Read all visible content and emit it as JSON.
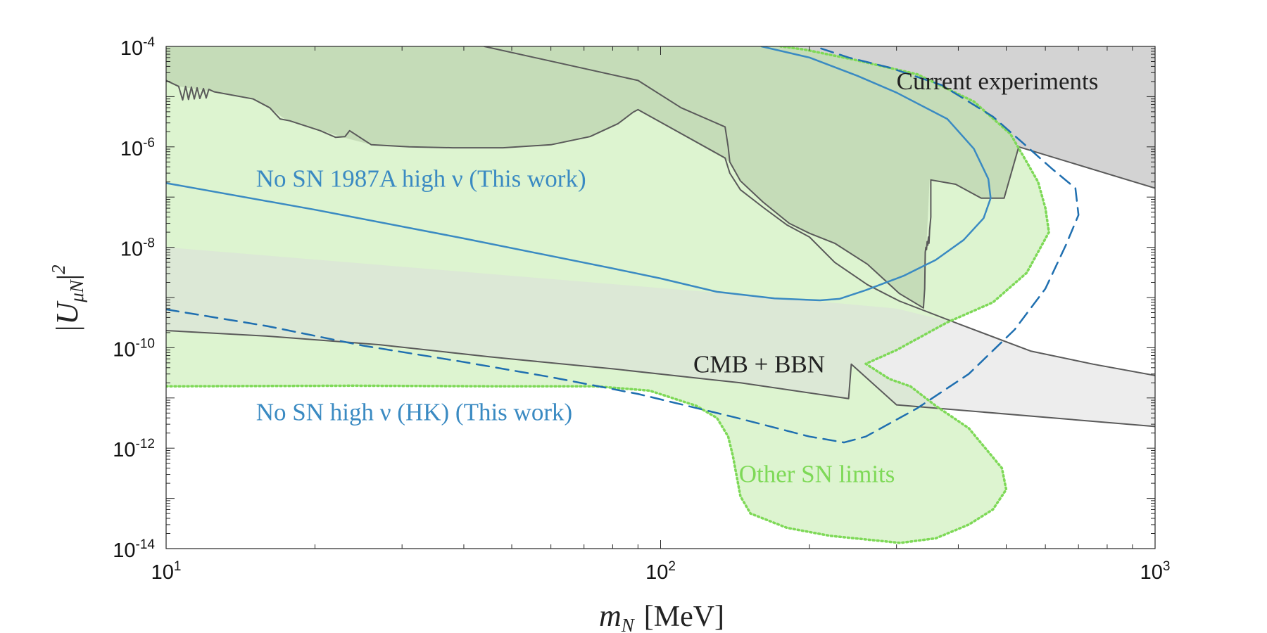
{
  "chart_data": {
    "type": "area",
    "xscale": "log",
    "yscale": "log",
    "xlim": [
      10,
      1000
    ],
    "ylim": [
      1e-14,
      0.0001
    ],
    "x_ticks": [
      {
        "base": "10",
        "exp": "1"
      },
      {
        "base": "10",
        "exp": "2"
      },
      {
        "base": "10",
        "exp": "3"
      }
    ],
    "y_ticks": [
      {
        "base": "10",
        "exp": "-4"
      },
      {
        "base": "10",
        "exp": "-6"
      },
      {
        "base": "10",
        "exp": "-8"
      },
      {
        "base": "10",
        "exp": "-10"
      },
      {
        "base": "10",
        "exp": "-12"
      },
      {
        "base": "10",
        "exp": "-14"
      }
    ],
    "xlabel": {
      "symbol": "m",
      "subscript": "N",
      "unit": "[MeV]"
    },
    "ylabel": {
      "symbol": "|U",
      "subscript": "μN",
      "suffix": "|",
      "power": "2"
    },
    "colors": {
      "current": "#9e9e9e",
      "cmb": "#dcdcdc",
      "sn_fill": "#b4e696",
      "sn_line": "#7ed957",
      "blue": "#3a8ac2",
      "blue_dark": "#1f6fb0",
      "outline": "#5a5a5a"
    },
    "annotations": [
      {
        "text": "Current experiments",
        "x": 300,
        "y": 1.4e-05,
        "anchor": "start",
        "color": "#222222"
      },
      {
        "text": "No SN 1987A high ν (This work)",
        "x": 15.2,
        "y": 1.6e-07,
        "anchor": "start",
        "color": "#3a8ac2"
      },
      {
        "text": "CMB + BBN",
        "x": 215,
        "y": 3.2e-11,
        "anchor": "end",
        "color": "#222222"
      },
      {
        "text": "No SN high ν (HK) (This work)",
        "x": 15.2,
        "y": 3.6e-12,
        "anchor": "start",
        "color": "#3a8ac2"
      },
      {
        "text": "Other SN limits",
        "x": 144,
        "y": 2.1e-13,
        "anchor": "start",
        "color": "#7ed957"
      }
    ],
    "series": [
      {
        "name": "Current experiments",
        "kind": "fill",
        "fill": "#9e9e9e",
        "opacity": 0.45,
        "points": [
          [
            10,
            2.1e-05
          ],
          [
            10.6,
            1.6e-05
          ],
          [
            12.5,
            1.25e-05
          ],
          [
            15,
            9e-06
          ],
          [
            16.2,
            6e-06
          ],
          [
            17.5,
            3.4e-06
          ],
          [
            21,
            2e-06
          ],
          [
            22.5,
            1.6e-06
          ],
          [
            26,
            1.1e-06
          ],
          [
            31,
            1e-06
          ],
          [
            38,
            9.6e-07
          ],
          [
            48,
            9.6e-07
          ],
          [
            60,
            1.1e-06
          ],
          [
            72,
            1.6e-06
          ],
          [
            82,
            2.9e-06
          ],
          [
            90,
            5.5e-06
          ],
          [
            138,
            5e-07
          ],
          [
            145,
            2.1e-07
          ],
          [
            161,
            8e-08
          ],
          [
            182,
            3e-08
          ],
          [
            200,
            1.9e-08
          ],
          [
            225,
            1.2e-08
          ],
          [
            262,
            4.6e-09
          ],
          [
            304,
            1.2e-09
          ],
          [
            340,
            6.2e-10
          ],
          [
            345,
            1.2e-08
          ],
          [
            350,
            2.2e-07
          ],
          [
            395,
            1.8e-07
          ],
          [
            445,
            9.5e-08
          ],
          [
            495,
            9.5e-08
          ],
          [
            530,
            1e-06
          ],
          [
            1000,
            1.5e-07
          ],
          [
            1000,
            0.0001
          ],
          [
            10,
            0.0001
          ]
        ]
      },
      {
        "name": "Other SN limits",
        "kind": "fill",
        "fill": "#b4e696",
        "opacity": 0.45,
        "points": [
          [
            10,
            1.7e-11
          ],
          [
            24,
            1.75e-11
          ],
          [
            48,
            1.7e-11
          ],
          [
            74,
            1.7e-11
          ],
          [
            95,
            1.4e-11
          ],
          [
            118,
            7e-12
          ],
          [
            130,
            4e-12
          ],
          [
            137,
            1.7e-12
          ],
          [
            140,
            7e-13
          ],
          [
            145,
            1.1e-13
          ],
          [
            152,
            5e-14
          ],
          [
            180,
            2.6e-14
          ],
          [
            220,
            1.8e-14
          ],
          [
            305,
            1.3e-14
          ],
          [
            360,
            1.6e-14
          ],
          [
            420,
            3e-14
          ],
          [
            470,
            6e-14
          ],
          [
            500,
            1.5e-13
          ],
          [
            490,
            4e-13
          ],
          [
            420,
            2.5e-12
          ],
          [
            360,
            7e-12
          ],
          [
            320,
            1.7e-11
          ],
          [
            290,
            2.4e-11
          ],
          [
            260,
            4.8e-11
          ],
          [
            300,
            9e-11
          ],
          [
            380,
            3.2e-10
          ],
          [
            470,
            8e-10
          ],
          [
            550,
            3.1e-09
          ],
          [
            610,
            2e-08
          ],
          [
            600,
            6e-08
          ],
          [
            580,
            2e-07
          ],
          [
            550,
            5e-07
          ],
          [
            510,
            1.8e-06
          ],
          [
            430,
            8e-06
          ],
          [
            330,
            2.8e-05
          ],
          [
            245,
            5.5e-05
          ],
          [
            195,
            8.7e-05
          ],
          [
            175,
            0.0001
          ],
          [
            10,
            0.0001
          ]
        ]
      },
      {
        "name": "CMB + BBN",
        "kind": "fill",
        "fill": "#dcdcdc",
        "opacity": 0.5,
        "points": [
          [
            10,
            2.2e-10
          ],
          [
            16,
            1.7e-10
          ],
          [
            27,
            1.15e-10
          ],
          [
            45,
            6.6e-11
          ],
          [
            80,
            3.8e-11
          ],
          [
            145,
            2e-11
          ],
          [
            240,
            9.7e-12
          ],
          [
            243,
            4.7e-11
          ],
          [
            300,
            7.3e-12
          ],
          [
            1000,
            2.7e-12
          ],
          [
            1000,
            2.8e-11
          ],
          [
            750,
            4.7e-11
          ],
          [
            560,
            8.6e-11
          ],
          [
            400,
            3e-10
          ],
          [
            300,
            6e-10
          ],
          [
            170,
            1e-09
          ],
          [
            10,
            1e-08
          ]
        ]
      },
      {
        "name": "outline-current-left",
        "kind": "line",
        "color": "#5a5a5a",
        "width": 2,
        "points": [
          [
            10,
            2.1e-05
          ],
          [
            10.6,
            1.6e-05
          ],
          [
            10.8,
            8.6e-06
          ],
          [
            10.95,
            1.6e-05
          ],
          [
            11.1,
            8.8e-06
          ],
          [
            11.25,
            1.55e-05
          ],
          [
            11.4,
            9e-06
          ],
          [
            11.55,
            1.5e-05
          ],
          [
            11.7,
            9.2e-06
          ],
          [
            11.9,
            1.45e-05
          ],
          [
            12.05,
            9.4e-06
          ],
          [
            12.2,
            1.4e-05
          ],
          [
            12.5,
            1.25e-05
          ],
          [
            15,
            9e-06
          ],
          [
            16.2,
            6e-06
          ],
          [
            17,
            3.6e-06
          ],
          [
            17.8,
            3.3e-06
          ],
          [
            20.5,
            2.1e-06
          ],
          [
            22,
            1.55e-06
          ],
          [
            23,
            1.6e-06
          ],
          [
            23.5,
            2.1e-06
          ],
          [
            26,
            1.1e-06
          ],
          [
            31,
            1e-06
          ],
          [
            38,
            9.6e-07
          ],
          [
            48,
            9.6e-07
          ],
          [
            60,
            1.1e-06
          ],
          [
            72,
            1.6e-06
          ],
          [
            82,
            2.9e-06
          ],
          [
            88,
            4.9e-06
          ],
          [
            90,
            5.5e-06
          ]
        ]
      },
      {
        "name": "outline-current-mid",
        "kind": "line",
        "color": "#5a5a5a",
        "width": 2,
        "points": [
          [
            44,
            0.0001
          ],
          [
            90,
            2.1e-05
          ],
          [
            110,
            6e-06
          ],
          [
            135,
            2.5e-06
          ],
          [
            137,
            1e-06
          ],
          [
            138,
            5e-07
          ],
          [
            145,
            2.1e-07
          ],
          [
            161,
            8e-08
          ],
          [
            182,
            3e-08
          ],
          [
            200,
            1.9e-08
          ],
          [
            225,
            1.2e-08
          ],
          [
            262,
            4.6e-09
          ],
          [
            304,
            1.2e-09
          ],
          [
            340,
            6.2e-10
          ],
          [
            342,
            1.5e-09
          ],
          [
            343,
            8e-09
          ],
          [
            344,
            1e-08
          ],
          [
            345,
            9e-09
          ],
          [
            346,
            1.3e-08
          ],
          [
            347,
            1.1e-08
          ],
          [
            348,
            1.6e-08
          ],
          [
            349,
            1.2e-08
          ],
          [
            350,
            2.2e-08
          ],
          [
            352,
            4e-08
          ],
          [
            352,
            2.2e-07
          ],
          [
            395,
            1.8e-07
          ],
          [
            445,
            9.5e-08
          ],
          [
            495,
            9.5e-08
          ],
          [
            530,
            1e-06
          ]
        ]
      },
      {
        "name": "outline-current-right",
        "kind": "line",
        "color": "#5a5a5a",
        "width": 2,
        "points": [
          [
            530,
            1e-06
          ],
          [
            1000,
            1.5e-07
          ]
        ]
      },
      {
        "name": "outline-mid-lower",
        "kind": "line",
        "color": "#5a5a5a",
        "width": 2,
        "points": [
          [
            90,
            5.5e-06
          ],
          [
            135,
            6e-07
          ],
          [
            138,
            3e-07
          ],
          [
            145,
            1.4e-07
          ],
          [
            162,
            6e-08
          ],
          [
            180,
            2.8e-08
          ],
          [
            200,
            1.6e-08
          ],
          [
            225,
            5e-09
          ],
          [
            262,
            1.8e-09
          ],
          [
            304,
            8.5e-10
          ],
          [
            400,
            3e-10
          ],
          [
            560,
            8.6e-11
          ],
          [
            750,
            4.7e-11
          ],
          [
            1000,
            2.8e-11
          ]
        ]
      },
      {
        "name": "outline-cmb-bbn",
        "kind": "line",
        "color": "#5a5a5a",
        "width": 2,
        "points": [
          [
            10,
            2.2e-10
          ],
          [
            16,
            1.7e-10
          ],
          [
            27,
            1.15e-10
          ],
          [
            45,
            6.6e-11
          ],
          [
            80,
            3.8e-11
          ],
          [
            145,
            2e-11
          ],
          [
            240,
            9.7e-12
          ],
          [
            243,
            4.7e-11
          ],
          [
            300,
            7.3e-12
          ],
          [
            1000,
            2.7e-12
          ]
        ]
      },
      {
        "name": "Other SN limits",
        "kind": "line",
        "color": "#7ed957",
        "width": 3.5,
        "dash": "2 4",
        "points": [
          [
            10,
            1.7e-11
          ],
          [
            24,
            1.75e-11
          ],
          [
            48,
            1.7e-11
          ],
          [
            74,
            1.7e-11
          ],
          [
            95,
            1.4e-11
          ],
          [
            118,
            7e-12
          ],
          [
            130,
            4e-12
          ],
          [
            137,
            1.7e-12
          ],
          [
            140,
            7e-13
          ],
          [
            145,
            1.1e-13
          ],
          [
            152,
            5e-14
          ],
          [
            180,
            2.6e-14
          ],
          [
            220,
            1.8e-14
          ],
          [
            305,
            1.3e-14
          ],
          [
            360,
            1.6e-14
          ],
          [
            420,
            3e-14
          ],
          [
            470,
            6e-14
          ],
          [
            500,
            1.5e-13
          ],
          [
            490,
            4e-13
          ],
          [
            420,
            2.5e-12
          ],
          [
            360,
            7e-12
          ],
          [
            320,
            1.7e-11
          ],
          [
            290,
            2.4e-11
          ],
          [
            260,
            4.8e-11
          ],
          [
            300,
            9e-11
          ],
          [
            380,
            3.2e-10
          ],
          [
            470,
            8e-10
          ],
          [
            550,
            3.1e-09
          ],
          [
            610,
            2e-08
          ],
          [
            600,
            6e-08
          ],
          [
            580,
            2e-07
          ],
          [
            550,
            5e-07
          ],
          [
            510,
            1.8e-06
          ],
          [
            430,
            8e-06
          ],
          [
            330,
            2.8e-05
          ],
          [
            245,
            5.5e-05
          ],
          [
            195,
            8.7e-05
          ],
          [
            175,
            0.0001
          ]
        ]
      },
      {
        "name": "No SN 1987A high ν (This work)",
        "kind": "line",
        "color": "#3a8ac2",
        "width": 2.5,
        "points": [
          [
            10,
            1.9e-07
          ],
          [
            20,
            5.6e-08
          ],
          [
            40,
            1.5e-08
          ],
          [
            80,
            3.8e-09
          ],
          [
            100,
            2.4e-09
          ],
          [
            130,
            1.3e-09
          ],
          [
            170,
            9.6e-10
          ],
          [
            210,
            8.8e-10
          ],
          [
            230,
            9.4e-10
          ],
          [
            260,
            1.4e-09
          ],
          [
            310,
            2.7e-09
          ],
          [
            360,
            5.6e-09
          ],
          [
            410,
            1.4e-08
          ],
          [
            450,
            3.8e-08
          ],
          [
            465,
            9.5e-08
          ],
          [
            460,
            2.3e-07
          ],
          [
            430,
            9.2e-07
          ],
          [
            380,
            3.6e-06
          ],
          [
            300,
            1.2e-05
          ],
          [
            250,
            2.6e-05
          ],
          [
            200,
            6e-05
          ],
          [
            160,
            0.0001
          ]
        ]
      },
      {
        "name": "No SN high ν (HK) (This work)",
        "kind": "line",
        "color": "#1f6fb0",
        "width": 2.5,
        "dash": "18 10",
        "points": [
          [
            10,
            5.8e-10
          ],
          [
            16,
            2.7e-10
          ],
          [
            25,
            1.1e-10
          ],
          [
            40,
            5.2e-11
          ],
          [
            60,
            2.6e-11
          ],
          [
            90,
            1.2e-11
          ],
          [
            140,
            4.2e-12
          ],
          [
            200,
            1.7e-12
          ],
          [
            235,
            1.3e-12
          ],
          [
            260,
            1.7e-12
          ],
          [
            330,
            6.2e-12
          ],
          [
            420,
            3e-11
          ],
          [
            520,
            2.3e-10
          ],
          [
            600,
            1.5e-09
          ],
          [
            660,
            1.1e-08
          ],
          [
            700,
            4.4e-08
          ],
          [
            690,
            1.5e-07
          ],
          [
            620,
            3.6e-07
          ],
          [
            540,
            1.2e-06
          ],
          [
            470,
            4e-06
          ],
          [
            370,
            1.7e-05
          ],
          [
            290,
            3.8e-05
          ],
          [
            240,
            6e-05
          ],
          [
            205,
            0.0001
          ]
        ]
      }
    ]
  }
}
